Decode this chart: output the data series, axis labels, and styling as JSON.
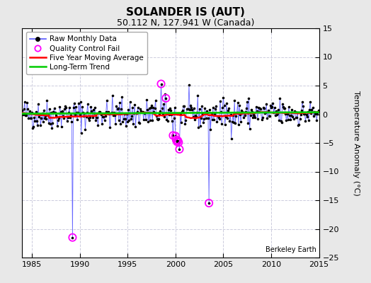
{
  "title": "SOLANDER IS (AUT)",
  "subtitle": "50.112 N, 127.941 W (Canada)",
  "ylabel": "Temperature Anomaly (°C)",
  "watermark": "Berkeley Earth",
  "xlim": [
    1984,
    2015
  ],
  "ylim": [
    -25,
    15
  ],
  "yticks": [
    -25,
    -20,
    -15,
    -10,
    -5,
    0,
    5,
    10,
    15
  ],
  "xticks": [
    1985,
    1990,
    1995,
    2000,
    2005,
    2010,
    2015
  ],
  "fig_bg_color": "#e8e8e8",
  "plot_bg_color": "#ffffff",
  "grid_color": "#ccccdd",
  "raw_line_color": "#5555ff",
  "raw_dot_color": "#000000",
  "moving_avg_color": "#ff0000",
  "trend_color": "#00cc00",
  "qc_fail_color": "#ff00ff",
  "title_fontsize": 11,
  "subtitle_fontsize": 9,
  "tick_fontsize": 8,
  "ylabel_fontsize": 8,
  "legend_fontsize": 7.5,
  "watermark_fontsize": 7,
  "qc_fail_points": [
    [
      1989.25,
      -21.5
    ],
    [
      1998.5,
      5.3
    ],
    [
      1999.0,
      2.8
    ],
    [
      1999.75,
      -3.7
    ],
    [
      2000.0,
      -3.8
    ],
    [
      2000.083,
      -4.5
    ],
    [
      2000.167,
      -4.8
    ],
    [
      2000.25,
      -4.6
    ],
    [
      2000.333,
      -4.9
    ],
    [
      2000.417,
      -6.1
    ],
    [
      2003.5,
      -15.5
    ]
  ]
}
